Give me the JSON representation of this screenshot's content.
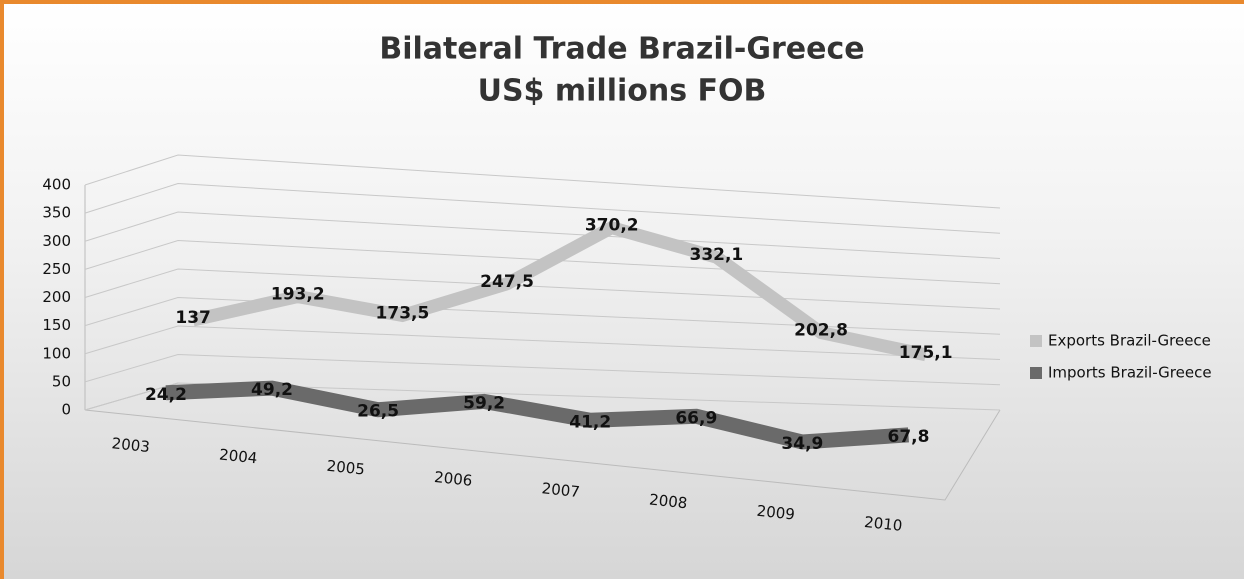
{
  "chart_data": {
    "type": "line3d",
    "title": "Bilateral Trade Brazil-Greece",
    "subtitle": "US$ millions FOB",
    "categories": [
      "2003",
      "2004",
      "2005",
      "2006",
      "2007",
      "2008",
      "2009",
      "2010"
    ],
    "series": [
      {
        "name": "Exports Brazil-Greece",
        "color": "#c3c3c3",
        "values": [
          137,
          193.2,
          173.5,
          247.5,
          370.2,
          332.1,
          202.8,
          175.1
        ],
        "value_labels": [
          "137",
          "193,2",
          "173,5",
          "247,5",
          "370,2",
          "332,1",
          "202,8",
          "175,1"
        ]
      },
      {
        "name": "Imports Brazil-Greece",
        "color": "#6a6a6a",
        "values": [
          24.2,
          49.2,
          26.5,
          59.2,
          41.2,
          66.9,
          34.9,
          67.8
        ],
        "value_labels": [
          "24,2",
          "49,2",
          "26,5",
          "59,2",
          "41,2",
          "66,9",
          "34,9",
          "67,8"
        ]
      }
    ],
    "ylim": [
      0,
      400
    ],
    "yticks": [
      0,
      50,
      100,
      150,
      200,
      250,
      300,
      350,
      400
    ],
    "grid": true,
    "legend": "right"
  }
}
